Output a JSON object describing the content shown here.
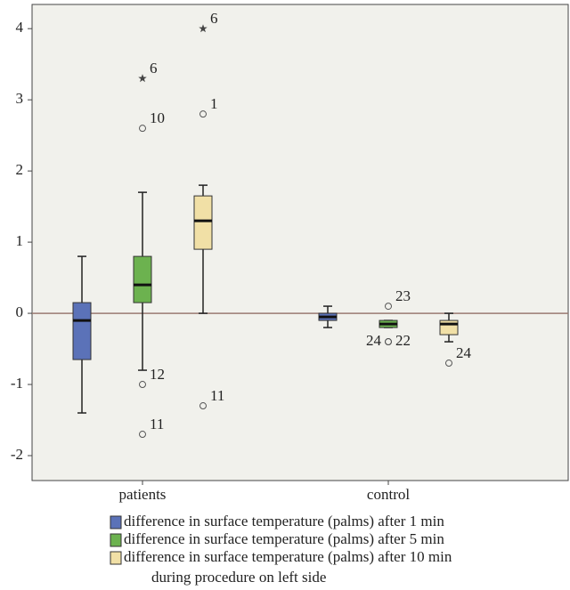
{
  "chart_data": {
    "type": "box",
    "categories": [
      "patients",
      "control"
    ],
    "ylim": [
      -2.35,
      4.34
    ],
    "yticks": [
      -2,
      -1,
      0,
      1,
      2,
      3,
      4
    ],
    "reference_line": 0,
    "series": [
      {
        "name": "difference in surface temperature (palms) after 1 min",
        "color": "#5b72b8",
        "values": [
          {
            "low": -1.4,
            "q1": -0.65,
            "median": -0.1,
            "q3": 0.15,
            "high": 0.8,
            "outliers": []
          },
          {
            "low": -0.2,
            "q1": -0.1,
            "median": -0.05,
            "q3": 0,
            "high": 0.1,
            "outliers": []
          }
        ]
      },
      {
        "name": "difference in surface temperature (palms) after 5 min",
        "color": "#6cb24f",
        "values": [
          {
            "low": -0.8,
            "q1": 0.15,
            "median": 0.4,
            "q3": 0.8,
            "high": 1.7,
            "outliers": [
              {
                "value": 2.6,
                "label": "10",
                "marker": "circle"
              },
              {
                "value": 3.3,
                "label": "6",
                "marker": "star"
              },
              {
                "value": -1.0,
                "label": "12",
                "marker": "circle"
              },
              {
                "value": -1.7,
                "label": "11",
                "marker": "circle"
              }
            ]
          },
          {
            "low": -0.2,
            "q1": -0.2,
            "median": -0.15,
            "q3": -0.1,
            "high": -0.1,
            "outliers": [
              {
                "value": 0.1,
                "label": "23",
                "marker": "circle"
              },
              {
                "value": -0.4,
                "label": "24",
                "marker": "circle"
              },
              {
                "value": -0.4,
                "label": "22",
                "marker": "circle"
              }
            ]
          }
        ]
      },
      {
        "name": "difference in surface temperature (palms) after 10 min",
        "color": "#f1e0a6",
        "values": [
          {
            "low": 0,
            "q1": 0.9,
            "median": 1.3,
            "q3": 1.65,
            "high": 1.8,
            "outliers": [
              {
                "value": 2.8,
                "label": "1",
                "marker": "circle"
              },
              {
                "value": 4.0,
                "label": "6",
                "marker": "star"
              },
              {
                "value": -1.3,
                "label": "11",
                "marker": "circle"
              }
            ]
          },
          {
            "low": -0.4,
            "q1": -0.3,
            "median": -0.15,
            "q3": -0.1,
            "high": 0,
            "outliers": [
              {
                "value": -0.7,
                "label": "24",
                "marker": "circle"
              }
            ]
          }
        ]
      }
    ],
    "legend_note": "during procedure on left side"
  }
}
